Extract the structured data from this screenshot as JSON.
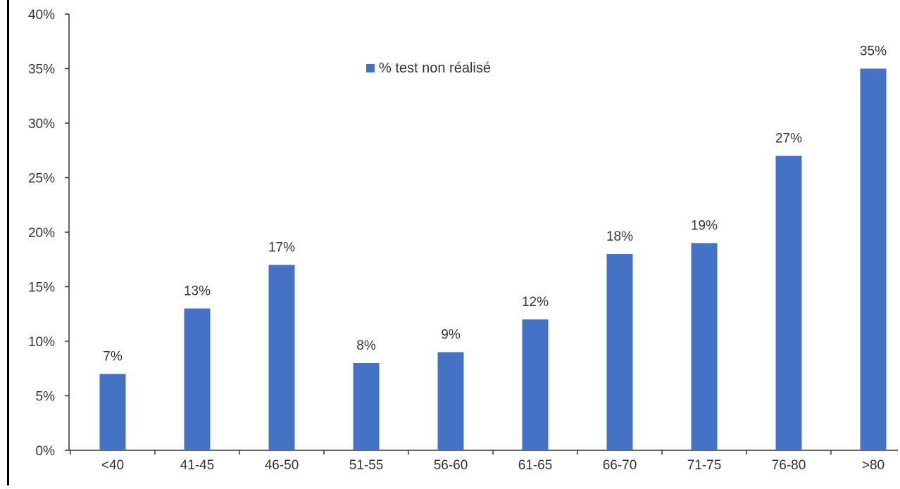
{
  "chart_data": {
    "type": "bar",
    "categories": [
      "<40",
      "41-45",
      "46-50",
      "51-55",
      "56-60",
      "61-65",
      "66-70",
      "71-75",
      "76-80",
      ">80"
    ],
    "series": [
      {
        "name": "% test non réalisé",
        "values": [
          7,
          13,
          17,
          8,
          9,
          12,
          18,
          19,
          27,
          35
        ],
        "data_labels": [
          "7%",
          "13%",
          "17%",
          "8%",
          "9%",
          "12%",
          "18%",
          "19%",
          "27%",
          "35%"
        ],
        "color": "#4472C4"
      }
    ],
    "ylim": [
      0,
      40
    ],
    "yticks": [
      0,
      5,
      10,
      15,
      20,
      25,
      30,
      35,
      40
    ],
    "ytick_labels": [
      "0%",
      "5%",
      "10%",
      "15%",
      "20%",
      "25%",
      "30%",
      "35%",
      "40%"
    ],
    "title": "",
    "xlabel": "",
    "ylabel": "",
    "grid": false,
    "legend_position": "top-center",
    "colors": {
      "bar": "#4472C4",
      "axis": "#333333",
      "text": "#333333"
    }
  }
}
